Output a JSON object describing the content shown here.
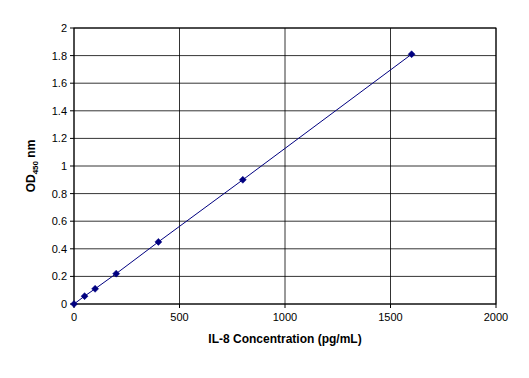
{
  "chart_data": {
    "type": "line",
    "x_label": "IL-8 Concentration (pg/mL)",
    "y_label": "OD450 nm",
    "x": [
      0,
      50,
      100,
      200,
      400,
      800,
      1600
    ],
    "values": [
      0,
      0.057,
      0.11,
      0.22,
      0.45,
      0.9,
      1.81
    ],
    "color": "#000080",
    "marker": "diamond",
    "line_style": "solid",
    "xlim": [
      0,
      2000
    ],
    "xticks": [
      0,
      500,
      1000,
      1500,
      2000
    ],
    "ylim": [
      0,
      2
    ],
    "yticks": [
      0,
      0.2,
      0.4,
      0.6,
      0.8,
      1,
      1.2,
      1.4,
      1.6,
      1.8,
      2
    ],
    "grid": true
  }
}
